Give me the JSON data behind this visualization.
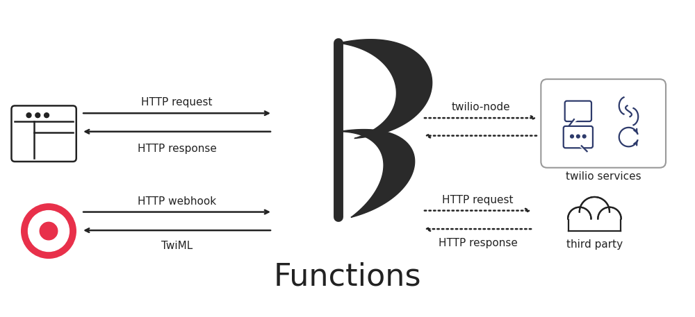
{
  "bg_color": "#ffffff",
  "title": "Functions",
  "title_fontsize": 32,
  "text_color": "#222222",
  "icon_color": "#222222",
  "twilio_icon_color": "#2d3a6b",
  "red_color": "#e8304a",
  "gray_color": "#999999",
  "labels": {
    "http_request_top": "HTTP request",
    "http_response_top": "HTTP response",
    "http_webhook": "HTTP webhook",
    "twiml": "TwiML",
    "twilio_node": "twilio-node",
    "http_request_bot": "HTTP request",
    "http_response_bot": "HTTP response",
    "twilio_services": "twilio services",
    "third_party": "third party"
  }
}
